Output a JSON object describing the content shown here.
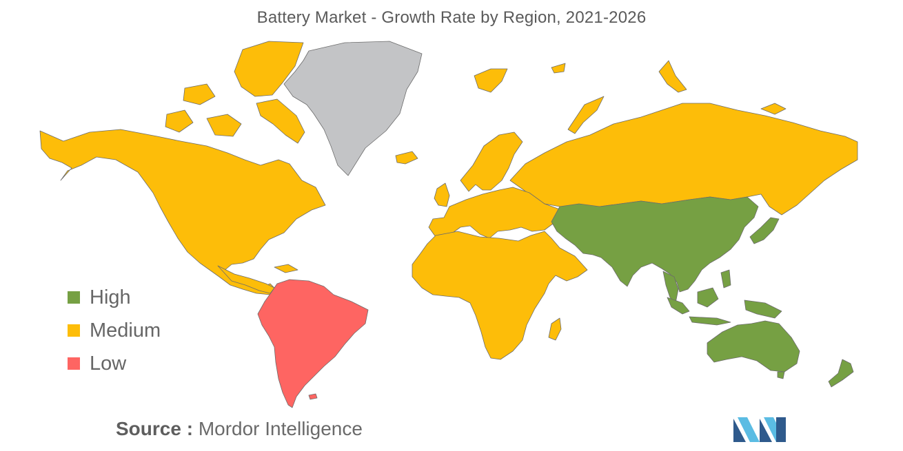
{
  "title": "Battery Market - Growth Rate by Region, 2021-2026",
  "colors": {
    "high": "#76a043",
    "medium": "#fdbd09",
    "low": "#fe6562",
    "nodata": "#c3c4c6",
    "border": "#6b6b6b",
    "logo_dark": "#2f5a8c",
    "logo_light": "#5bbce3"
  },
  "legend": [
    {
      "label": "High",
      "color": "#76a043"
    },
    {
      "label": "Medium",
      "color": "#fdbd09"
    },
    {
      "label": "Low",
      "color": "#fe6562"
    }
  ],
  "regions": [
    {
      "name": "North America",
      "level": "Medium"
    },
    {
      "name": "Europe",
      "level": "Medium"
    },
    {
      "name": "Middle East & Africa",
      "level": "Medium"
    },
    {
      "name": "Asia-Pacific",
      "level": "High"
    },
    {
      "name": "South America",
      "level": "Low"
    }
  ],
  "source": {
    "label": "Source :",
    "value": "Mordor Intelligence"
  },
  "logo_icon": "mordor-intelligence-logo"
}
